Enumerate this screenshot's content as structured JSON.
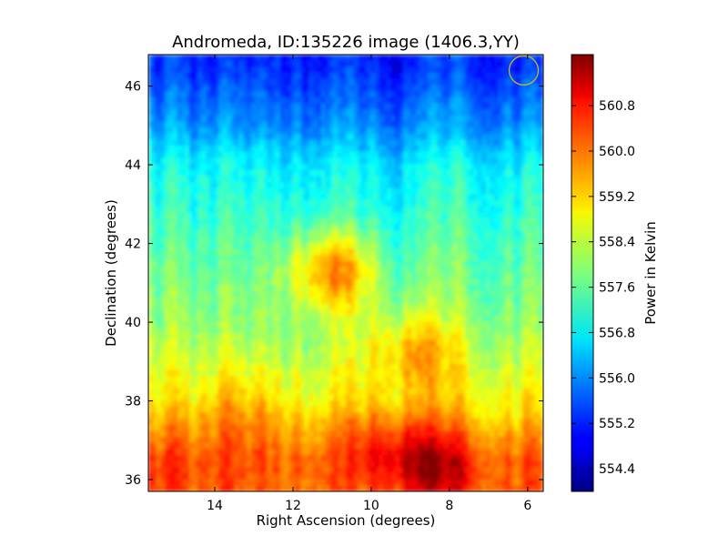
{
  "chart_data": {
    "type": "heatmap",
    "title": "Andromeda, ID:135226 image (1406.3,YY)",
    "xlabel": "Right Ascension (degrees)",
    "ylabel": "Declination (degrees)",
    "xlim": [
      15.7,
      5.6
    ],
    "ylim": [
      35.7,
      46.8
    ],
    "x_ticks": [
      14,
      12,
      10,
      8,
      6
    ],
    "x_tick_labels": [
      "14",
      "12",
      "10",
      "8",
      "6"
    ],
    "y_ticks": [
      36,
      38,
      40,
      42,
      44,
      46
    ],
    "y_tick_labels": [
      "36",
      "38",
      "40",
      "42",
      "44",
      "46"
    ],
    "colorbar": {
      "label": "Power in Kelvin",
      "range": [
        554.0,
        561.7
      ],
      "ticks": [
        554.4,
        555.2,
        556.0,
        556.8,
        557.6,
        558.4,
        559.2,
        560.0,
        560.8
      ],
      "tick_labels": [
        "554.4",
        "555.2",
        "556.0",
        "556.8",
        "557.6",
        "558.4",
        "559.2",
        "560.0",
        "560.8"
      ],
      "colormap": "jet"
    },
    "value_profile_by_declination": [
      {
        "dec": 46.5,
        "power": 555.2
      },
      {
        "dec": 45.0,
        "power": 556.0
      },
      {
        "dec": 44.0,
        "power": 556.8
      },
      {
        "dec": 42.0,
        "power": 557.4
      },
      {
        "dec": 40.0,
        "power": 557.9
      },
      {
        "dec": 38.0,
        "power": 558.8
      },
      {
        "dec": 36.5,
        "power": 560.0
      }
    ],
    "hotspots": [
      {
        "ra": 8.5,
        "dec": 36.3,
        "power": 561.3
      },
      {
        "ra": 9.5,
        "dec": 37.0,
        "power": 560.6
      },
      {
        "ra": 15.2,
        "dec": 36.3,
        "power": 560.2
      },
      {
        "ra": 11.0,
        "dec": 41.3,
        "power": 560.0
      },
      {
        "ra": 9.0,
        "dec": 39.3,
        "power": 559.7
      },
      {
        "ra": 13.3,
        "dec": 37.7,
        "power": 559.6
      }
    ],
    "marker": {
      "shape": "circle",
      "ra": 6.1,
      "dec": 46.4,
      "color": "#c8b41e"
    },
    "grid": false,
    "legend": "none"
  }
}
